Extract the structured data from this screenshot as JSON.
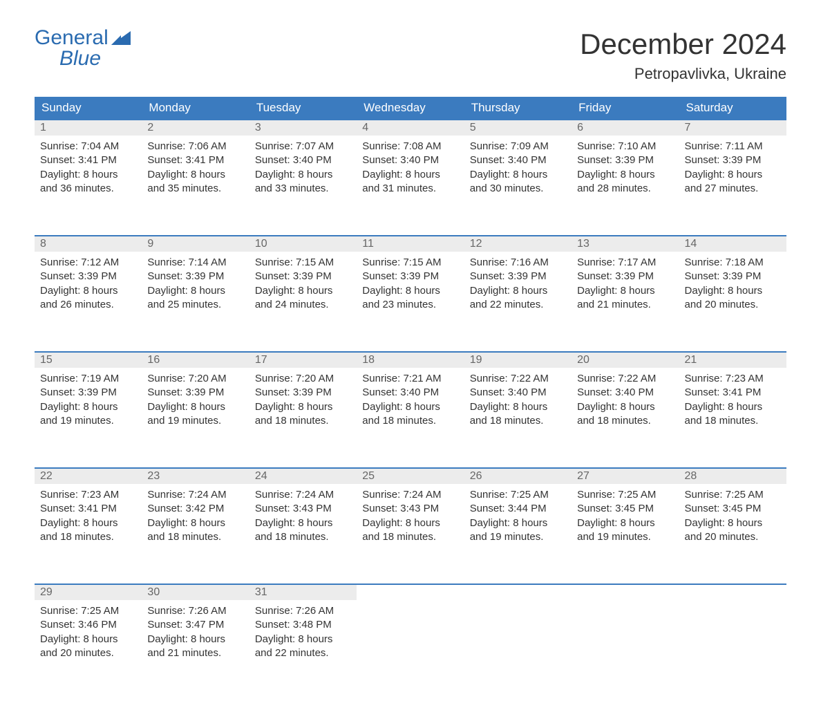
{
  "brand": {
    "line1": "General",
    "line2": "Blue",
    "color": "#2a6bb0"
  },
  "title": "December 2024",
  "location": "Petropavlivka, Ukraine",
  "colors": {
    "header_bg": "#3b7bbf",
    "header_text": "#ffffff",
    "daynum_bg": "#ececec",
    "daynum_text": "#666666",
    "border": "#3b7bbf",
    "body_text": "#333333",
    "page_bg": "#ffffff"
  },
  "typography": {
    "title_size": 42,
    "location_size": 22,
    "header_size": 17,
    "body_size": 15
  },
  "layout": {
    "columns": 7,
    "rows": 5,
    "aspect": "1188x918"
  },
  "weekdays": [
    "Sunday",
    "Monday",
    "Tuesday",
    "Wednesday",
    "Thursday",
    "Friday",
    "Saturday"
  ],
  "weeks": [
    [
      {
        "n": "1",
        "sunrise": "Sunrise: 7:04 AM",
        "sunset": "Sunset: 3:41 PM",
        "dl1": "Daylight: 8 hours",
        "dl2": "and 36 minutes."
      },
      {
        "n": "2",
        "sunrise": "Sunrise: 7:06 AM",
        "sunset": "Sunset: 3:41 PM",
        "dl1": "Daylight: 8 hours",
        "dl2": "and 35 minutes."
      },
      {
        "n": "3",
        "sunrise": "Sunrise: 7:07 AM",
        "sunset": "Sunset: 3:40 PM",
        "dl1": "Daylight: 8 hours",
        "dl2": "and 33 minutes."
      },
      {
        "n": "4",
        "sunrise": "Sunrise: 7:08 AM",
        "sunset": "Sunset: 3:40 PM",
        "dl1": "Daylight: 8 hours",
        "dl2": "and 31 minutes."
      },
      {
        "n": "5",
        "sunrise": "Sunrise: 7:09 AM",
        "sunset": "Sunset: 3:40 PM",
        "dl1": "Daylight: 8 hours",
        "dl2": "and 30 minutes."
      },
      {
        "n": "6",
        "sunrise": "Sunrise: 7:10 AM",
        "sunset": "Sunset: 3:39 PM",
        "dl1": "Daylight: 8 hours",
        "dl2": "and 28 minutes."
      },
      {
        "n": "7",
        "sunrise": "Sunrise: 7:11 AM",
        "sunset": "Sunset: 3:39 PM",
        "dl1": "Daylight: 8 hours",
        "dl2": "and 27 minutes."
      }
    ],
    [
      {
        "n": "8",
        "sunrise": "Sunrise: 7:12 AM",
        "sunset": "Sunset: 3:39 PM",
        "dl1": "Daylight: 8 hours",
        "dl2": "and 26 minutes."
      },
      {
        "n": "9",
        "sunrise": "Sunrise: 7:14 AM",
        "sunset": "Sunset: 3:39 PM",
        "dl1": "Daylight: 8 hours",
        "dl2": "and 25 minutes."
      },
      {
        "n": "10",
        "sunrise": "Sunrise: 7:15 AM",
        "sunset": "Sunset: 3:39 PM",
        "dl1": "Daylight: 8 hours",
        "dl2": "and 24 minutes."
      },
      {
        "n": "11",
        "sunrise": "Sunrise: 7:15 AM",
        "sunset": "Sunset: 3:39 PM",
        "dl1": "Daylight: 8 hours",
        "dl2": "and 23 minutes."
      },
      {
        "n": "12",
        "sunrise": "Sunrise: 7:16 AM",
        "sunset": "Sunset: 3:39 PM",
        "dl1": "Daylight: 8 hours",
        "dl2": "and 22 minutes."
      },
      {
        "n": "13",
        "sunrise": "Sunrise: 7:17 AM",
        "sunset": "Sunset: 3:39 PM",
        "dl1": "Daylight: 8 hours",
        "dl2": "and 21 minutes."
      },
      {
        "n": "14",
        "sunrise": "Sunrise: 7:18 AM",
        "sunset": "Sunset: 3:39 PM",
        "dl1": "Daylight: 8 hours",
        "dl2": "and 20 minutes."
      }
    ],
    [
      {
        "n": "15",
        "sunrise": "Sunrise: 7:19 AM",
        "sunset": "Sunset: 3:39 PM",
        "dl1": "Daylight: 8 hours",
        "dl2": "and 19 minutes."
      },
      {
        "n": "16",
        "sunrise": "Sunrise: 7:20 AM",
        "sunset": "Sunset: 3:39 PM",
        "dl1": "Daylight: 8 hours",
        "dl2": "and 19 minutes."
      },
      {
        "n": "17",
        "sunrise": "Sunrise: 7:20 AM",
        "sunset": "Sunset: 3:39 PM",
        "dl1": "Daylight: 8 hours",
        "dl2": "and 18 minutes."
      },
      {
        "n": "18",
        "sunrise": "Sunrise: 7:21 AM",
        "sunset": "Sunset: 3:40 PM",
        "dl1": "Daylight: 8 hours",
        "dl2": "and 18 minutes."
      },
      {
        "n": "19",
        "sunrise": "Sunrise: 7:22 AM",
        "sunset": "Sunset: 3:40 PM",
        "dl1": "Daylight: 8 hours",
        "dl2": "and 18 minutes."
      },
      {
        "n": "20",
        "sunrise": "Sunrise: 7:22 AM",
        "sunset": "Sunset: 3:40 PM",
        "dl1": "Daylight: 8 hours",
        "dl2": "and 18 minutes."
      },
      {
        "n": "21",
        "sunrise": "Sunrise: 7:23 AM",
        "sunset": "Sunset: 3:41 PM",
        "dl1": "Daylight: 8 hours",
        "dl2": "and 18 minutes."
      }
    ],
    [
      {
        "n": "22",
        "sunrise": "Sunrise: 7:23 AM",
        "sunset": "Sunset: 3:41 PM",
        "dl1": "Daylight: 8 hours",
        "dl2": "and 18 minutes."
      },
      {
        "n": "23",
        "sunrise": "Sunrise: 7:24 AM",
        "sunset": "Sunset: 3:42 PM",
        "dl1": "Daylight: 8 hours",
        "dl2": "and 18 minutes."
      },
      {
        "n": "24",
        "sunrise": "Sunrise: 7:24 AM",
        "sunset": "Sunset: 3:43 PM",
        "dl1": "Daylight: 8 hours",
        "dl2": "and 18 minutes."
      },
      {
        "n": "25",
        "sunrise": "Sunrise: 7:24 AM",
        "sunset": "Sunset: 3:43 PM",
        "dl1": "Daylight: 8 hours",
        "dl2": "and 18 minutes."
      },
      {
        "n": "26",
        "sunrise": "Sunrise: 7:25 AM",
        "sunset": "Sunset: 3:44 PM",
        "dl1": "Daylight: 8 hours",
        "dl2": "and 19 minutes."
      },
      {
        "n": "27",
        "sunrise": "Sunrise: 7:25 AM",
        "sunset": "Sunset: 3:45 PM",
        "dl1": "Daylight: 8 hours",
        "dl2": "and 19 minutes."
      },
      {
        "n": "28",
        "sunrise": "Sunrise: 7:25 AM",
        "sunset": "Sunset: 3:45 PM",
        "dl1": "Daylight: 8 hours",
        "dl2": "and 20 minutes."
      }
    ],
    [
      {
        "n": "29",
        "sunrise": "Sunrise: 7:25 AM",
        "sunset": "Sunset: 3:46 PM",
        "dl1": "Daylight: 8 hours",
        "dl2": "and 20 minutes."
      },
      {
        "n": "30",
        "sunrise": "Sunrise: 7:26 AM",
        "sunset": "Sunset: 3:47 PM",
        "dl1": "Daylight: 8 hours",
        "dl2": "and 21 minutes."
      },
      {
        "n": "31",
        "sunrise": "Sunrise: 7:26 AM",
        "sunset": "Sunset: 3:48 PM",
        "dl1": "Daylight: 8 hours",
        "dl2": "and 22 minutes."
      },
      null,
      null,
      null,
      null
    ]
  ]
}
